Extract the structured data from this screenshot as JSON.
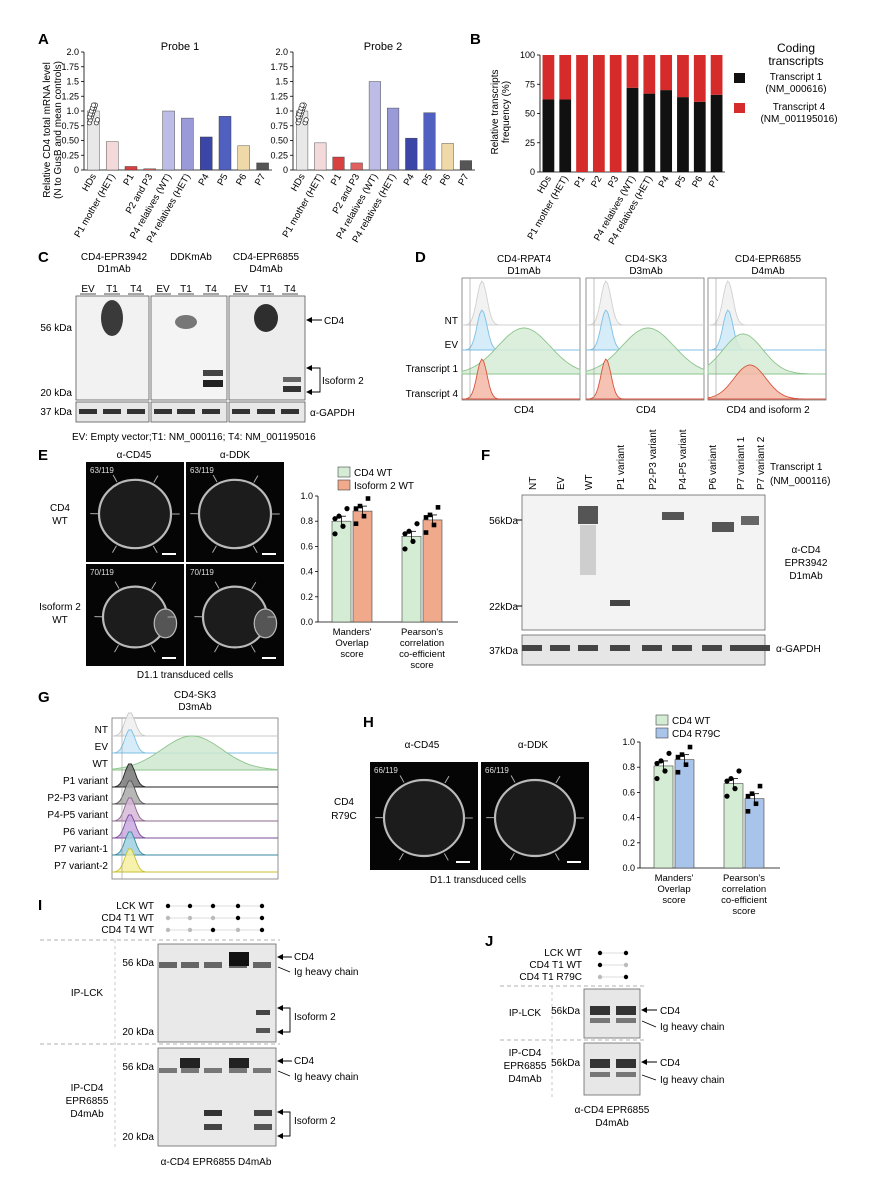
{
  "panels": {
    "A": {
      "letter": "A",
      "ylabel_line1": "Relative CD4 total mRNA level",
      "ylabel_line2": "(N to GusB and mean controls)",
      "yticks": [
        "0",
        "0.25",
        "0.50",
        "0.75",
        "1.0",
        "1.25",
        "1.5",
        "1.75",
        "2.0"
      ],
      "probe1_title": "Probe 1",
      "probe2_title": "Probe 2",
      "categories": [
        "HDs",
        "P1 mother (HET)",
        "P1",
        "P2 and P3",
        "P4 relatives (WT)",
        "P4 relatives (HET)",
        "P4",
        "P5",
        "P6",
        "P7"
      ]
    },
    "B": {
      "letter": "B",
      "ylabel_line1": "Relative transcripts",
      "ylabel_line2": "frequency (%)",
      "yticks": [
        "0",
        "25",
        "50",
        "75",
        "100"
      ],
      "categories": [
        "HDs",
        "P1 mother (HET)",
        "P1",
        "P2",
        "P3",
        "P4 relatives (WT)",
        "P4 relatives (HET)",
        "P4",
        "P5",
        "P6",
        "P7"
      ],
      "legend_title_1": "Coding",
      "legend_title_2": "transcripts",
      "legend_1a": "Transcript 1",
      "legend_1b": "(NM_000616)",
      "legend_2a": "Transcript 4",
      "legend_2b": "(NM_001195016)",
      "color_t1": "#111111",
      "color_t4": "#d62b2b"
    },
    "C": {
      "letter": "C",
      "abs": [
        {
          "l1": "CD4-EPR3942",
          "l2": "D1mAb"
        },
        {
          "l1": "DDKmAb",
          "l2": ""
        },
        {
          "l1": "CD4-EPR6855",
          "l2": "D4mAb"
        }
      ],
      "lanes": [
        "EV",
        "T1",
        "T4"
      ],
      "kda56": "56 kDa",
      "kda20": "20 kDa",
      "kda37": "37 kDa",
      "cd4": "CD4",
      "isoform2": "Isoform 2",
      "gapdh": "α-GAPDH",
      "footnote": "EV: Empty vector;T1: NM_000116; T4: NM_001195016"
    },
    "D": {
      "letter": "D",
      "abs": [
        {
          "l1": "CD4-RPAT4",
          "l2": "D1mAb",
          "x": "CD4"
        },
        {
          "l1": "CD4-SK3",
          "l2": "D3mAb",
          "x": "CD4"
        },
        {
          "l1": "CD4-EPR6855",
          "l2": "D4mAb",
          "x": "CD4 and isoform 2"
        }
      ],
      "rows": [
        "NT",
        "EV",
        "Transcript 1",
        "Transcript 4"
      ]
    },
    "E": {
      "letter": "E",
      "col1": "α-CD45",
      "col2": "α-DDK",
      "row1a": "CD4",
      "row1b": "WT",
      "row2a": "Isoform 2",
      "row2b": "WT",
      "img_labels": [
        "63/119",
        "63/119",
        "70/119",
        "70/119"
      ],
      "caption": "D1.1 transduced cells",
      "legend_a": "CD4 WT",
      "legend_b": "Isoform 2 WT",
      "color_a": "#d4ecd4",
      "color_b": "#f0a98a",
      "yticks": [
        "0.0",
        "0.2",
        "0.4",
        "0.6",
        "0.8",
        "1.0"
      ],
      "groups": [
        {
          "l1": "Manders'",
          "l2": "Overlap",
          "l3": "score",
          "l4": ""
        },
        {
          "l1": "Pearson's",
          "l2": "correlation",
          "l3": "co-efficient",
          "l4": "score"
        }
      ]
    },
    "F": {
      "letter": "F",
      "lanes": [
        "NT",
        "EV",
        "WT",
        "P1 variant",
        "P2-P3 variant",
        "P4-P5 variant",
        "P6 variant",
        "P7 variant 1",
        "P7 variant 2"
      ],
      "transcript_a": "Transcript 1",
      "transcript_b": "(NM_000116)",
      "kda56": "56kDa",
      "kda22": "22kDa",
      "kda37": "37kDa",
      "ab1": "α-CD4",
      "ab2": "EPR3942",
      "ab3": "D1mAb",
      "gapdh": "α-GAPDH"
    },
    "G": {
      "letter": "G",
      "title1": "CD4-SK3",
      "title2": "D3mAb",
      "rows": [
        "NT",
        "EV",
        "WT",
        "P1 variant",
        "P2-P3 variant",
        "P4-P5 variant",
        "P6 variant",
        "P7 variant-1",
        "P7 variant-2"
      ]
    },
    "H": {
      "letter": "H",
      "col1": "α-CD45",
      "col2": "α-DDK",
      "row1": "CD4",
      "row2": "R79C",
      "img_labels": [
        "66/119",
        "66/119"
      ],
      "caption": "D1.1 transduced cells",
      "legend_a": "CD4 WT",
      "legend_b": "CD4 R79C",
      "color_a": "#d4ecd4",
      "color_b": "#a9c4ea",
      "yticks": [
        "0.0",
        "0.2",
        "0.4",
        "0.6",
        "0.8",
        "1.0"
      ],
      "groups": [
        {
          "l1": "Manders'",
          "l2": "Overlap",
          "l3": "score",
          "l4": ""
        },
        {
          "l1": "Pearson's",
          "l2": "correlation",
          "l3": "co-efficient",
          "l4": "score"
        }
      ]
    },
    "I": {
      "letter": "I",
      "rows": [
        "LCK WT",
        "CD4 T1 WT",
        "CD4 T4 WT"
      ],
      "ip1": "IP-LCK",
      "ip2a": "IP-CD4",
      "ip2b": "EPR6855",
      "ip2c": "D4mAb",
      "kda56": "56 kDa",
      "kda20": "20 kDa",
      "cd4": "CD4",
      "ig": "Ig heavy chain",
      "isoform2": "Isoform 2",
      "bottom": "α-CD4 EPR6855 D4mAb"
    },
    "J": {
      "letter": "J",
      "rows": [
        "LCK WT",
        "CD4 T1 WT",
        "CD4 T1 R79C"
      ],
      "ip1": "IP-LCK",
      "ip2a": "IP-CD4",
      "ip2b": "EPR6855",
      "ip2c": "D4mAb",
      "kda56": "56kDa",
      "cd4": "CD4",
      "ig": "Ig heavy chain",
      "bottom1": "α-CD4 EPR6855",
      "bottom2": "D4mAb"
    }
  },
  "chart_data": [
    {
      "panel": "A",
      "type": "bar",
      "title": "Probe 1",
      "categories": [
        "HDs",
        "P1 mother (HET)",
        "P1",
        "P2 and P3",
        "P4 relatives (WT)",
        "P4 relatives (HET)",
        "P4",
        "P5",
        "P6",
        "P7"
      ],
      "values": [
        1.0,
        0.48,
        0.06,
        0.02,
        1.0,
        0.88,
        0.56,
        0.91,
        0.41,
        0.12
      ],
      "ylabel": "Relative CD4 total mRNA level (N to GusB and mean controls)",
      "ylim": [
        0,
        2.0
      ]
    },
    {
      "panel": "A",
      "type": "bar",
      "title": "Probe 2",
      "categories": [
        "HDs",
        "P1 mother (HET)",
        "P1",
        "P2 and P3",
        "P4 relatives (WT)",
        "P4 relatives (HET)",
        "P4",
        "P5",
        "P6",
        "P7"
      ],
      "values": [
        1.0,
        0.46,
        0.22,
        0.12,
        1.5,
        1.05,
        0.54,
        0.97,
        0.45,
        0.16
      ],
      "ylim": [
        0,
        2.0
      ]
    },
    {
      "panel": "B",
      "type": "bar",
      "categories": [
        "HDs",
        "P1 mother (HET)",
        "P1",
        "P2",
        "P3",
        "P4 relatives (WT)",
        "P4 relatives (HET)",
        "P4",
        "P5",
        "P6",
        "P7"
      ],
      "series": [
        {
          "name": "Transcript 1 (NM_000616)",
          "values": [
            62,
            62,
            0,
            0,
            0,
            72,
            67,
            70,
            64,
            60,
            66
          ]
        },
        {
          "name": "Transcript 4 (NM_001195016)",
          "values": [
            38,
            38,
            100,
            100,
            100,
            28,
            33,
            30,
            36,
            40,
            34
          ]
        }
      ],
      "ylabel": "Relative transcripts frequency (%)",
      "ylim": [
        0,
        100
      ]
    },
    {
      "panel": "E",
      "type": "bar",
      "categories": [
        "Manders' Overlap score",
        "Pearson's correlation co-efficient score"
      ],
      "series": [
        {
          "name": "CD4 WT",
          "values": [
            0.8,
            0.68
          ]
        },
        {
          "name": "Isoform 2 WT",
          "values": [
            0.88,
            0.81
          ]
        }
      ],
      "ylim": [
        0,
        1.0
      ]
    },
    {
      "panel": "H",
      "type": "bar",
      "categories": [
        "Manders' Overlap score",
        "Pearson's correlation co-efficient score"
      ],
      "series": [
        {
          "name": "CD4 WT",
          "values": [
            0.81,
            0.67
          ]
        },
        {
          "name": "CD4 R79C",
          "values": [
            0.86,
            0.55
          ]
        }
      ],
      "ylim": [
        0,
        1.0
      ]
    }
  ]
}
